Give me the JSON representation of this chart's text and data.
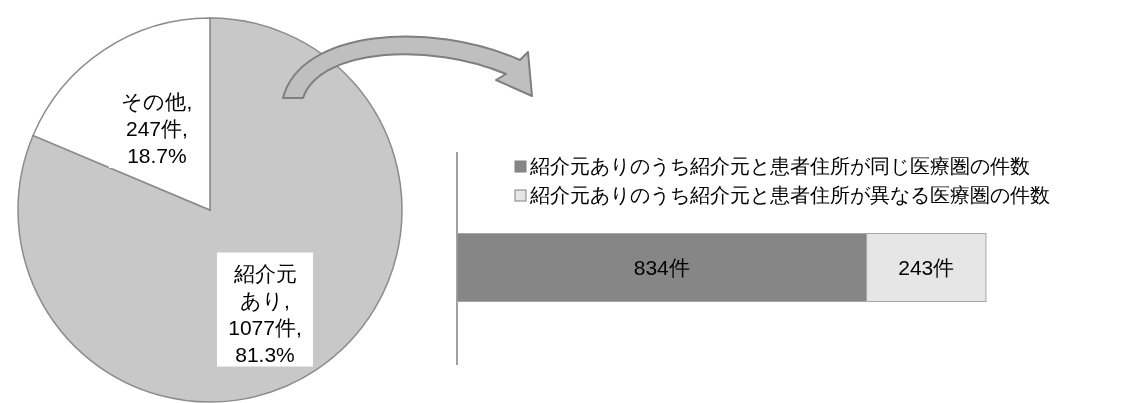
{
  "chart_data": [
    {
      "type": "pie",
      "categories": [
        "紹介元あり",
        "その他"
      ],
      "values": [
        1077,
        247
      ],
      "colors": [
        "#c8c8c8",
        "#ffffff"
      ],
      "value_labels": [
        ", 1077件, 81.3%",
        ", 247件, 18.7%"
      ]
    },
    {
      "type": "bar",
      "orientation": "horizontal",
      "stacked": true,
      "categories": [
        null
      ],
      "legend": "top",
      "series": [
        {
          "name": "紹介元ありのうち紹介元と患者住所が同じ医療圏の件数",
          "color": "#868686",
          "values": [
            834
          ],
          "value_labels": [
            "834件"
          ]
        },
        {
          "name": "紹介元ありのうち紹介元と患者住所が異なる医療圏の件数",
          "color": "#e6e6e6",
          "values": [
            243
          ],
          "value_labels": [
            "243件"
          ]
        }
      ]
    }
  ]
}
